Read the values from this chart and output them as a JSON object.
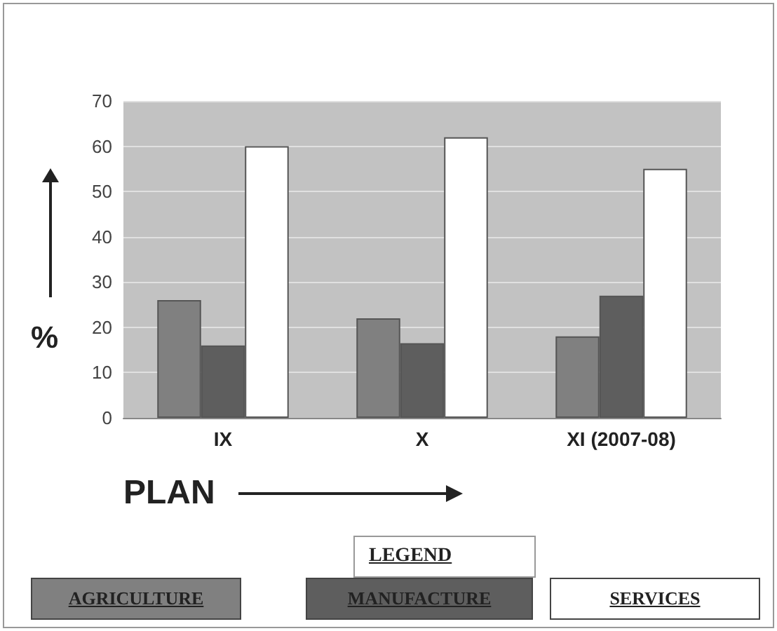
{
  "chart_data": {
    "type": "bar",
    "xlabel": "PLAN",
    "ylabel": "%",
    "legend_title": "LEGEND",
    "categories": [
      "IX",
      "X",
      "XI (2007-08)"
    ],
    "series": [
      {
        "name": "AGRICULTURE",
        "color": "#808080",
        "values": [
          26,
          22,
          18
        ]
      },
      {
        "name": "MANUFACTURE",
        "color": "#5e5e5e",
        "values": [
          16,
          16.5,
          27
        ]
      },
      {
        "name": "SERVICES",
        "color": "#ffffff",
        "values": [
          60,
          62,
          55
        ]
      }
    ],
    "ylim": [
      0,
      70
    ],
    "yticks": [
      0,
      10,
      20,
      30,
      40,
      50,
      60,
      70
    ],
    "grid": "y",
    "legend": "bottom"
  }
}
